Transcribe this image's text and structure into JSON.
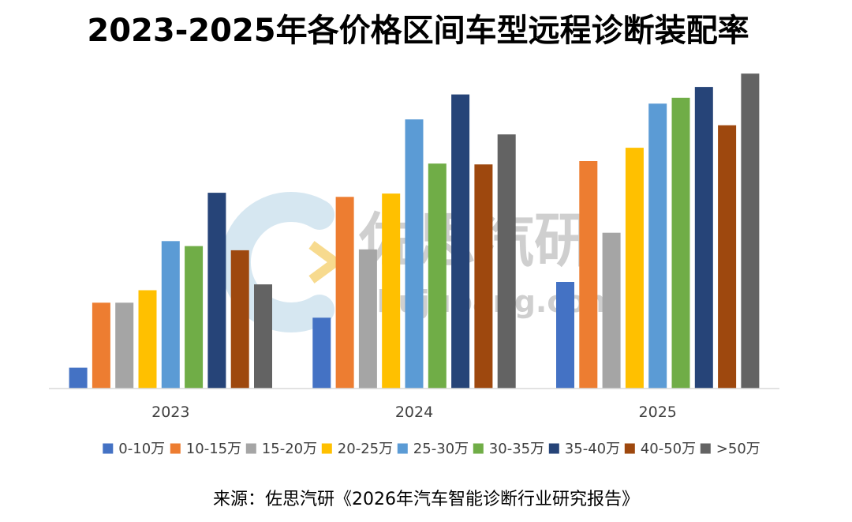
{
  "chart_data": {
    "type": "bar",
    "title": "2023-2025年各价格区间车型远程诊断装配率",
    "categories": [
      "2023",
      "2024",
      "2025"
    ],
    "series": [
      {
        "name": "0-10万",
        "color": "#4472C4",
        "values": [
          2.5,
          8.5,
          12.8
        ]
      },
      {
        "name": "10-15万",
        "color": "#ED7D31",
        "values": [
          10.3,
          23.0,
          27.3
        ]
      },
      {
        "name": "15-20万",
        "color": "#A5A5A5",
        "values": [
          10.3,
          16.7,
          18.7
        ]
      },
      {
        "name": "20-25万",
        "color": "#FFC000",
        "values": [
          11.8,
          23.4,
          28.9
        ]
      },
      {
        "name": "25-30万",
        "color": "#5B9BD5",
        "values": [
          17.7,
          32.3,
          34.2
        ]
      },
      {
        "name": "30-35万",
        "color": "#70AD47",
        "values": [
          17.1,
          27.0,
          34.9
        ]
      },
      {
        "name": "35-40万",
        "color": "#264478",
        "values": [
          23.5,
          35.3,
          36.2
        ]
      },
      {
        "name": "40-50万",
        "color": "#9E480E",
        "values": [
          16.6,
          26.9,
          31.6
        ]
      },
      {
        "name": ">50万",
        "color": "#636363",
        "values": [
          12.5,
          30.5,
          37.8
        ]
      }
    ],
    "ylim": [
      0,
      40
    ],
    "xlabel": "",
    "ylabel": "",
    "grid": false,
    "legend_position": "bottom"
  },
  "watermark": {
    "name": "佐思汽研",
    "url": "shujubang.com"
  },
  "source": "来源：佐思汽研《2026年汽车智能诊断行业研究报告》",
  "colors": {
    "axis": "#D9D9D9",
    "text": "#404040"
  }
}
